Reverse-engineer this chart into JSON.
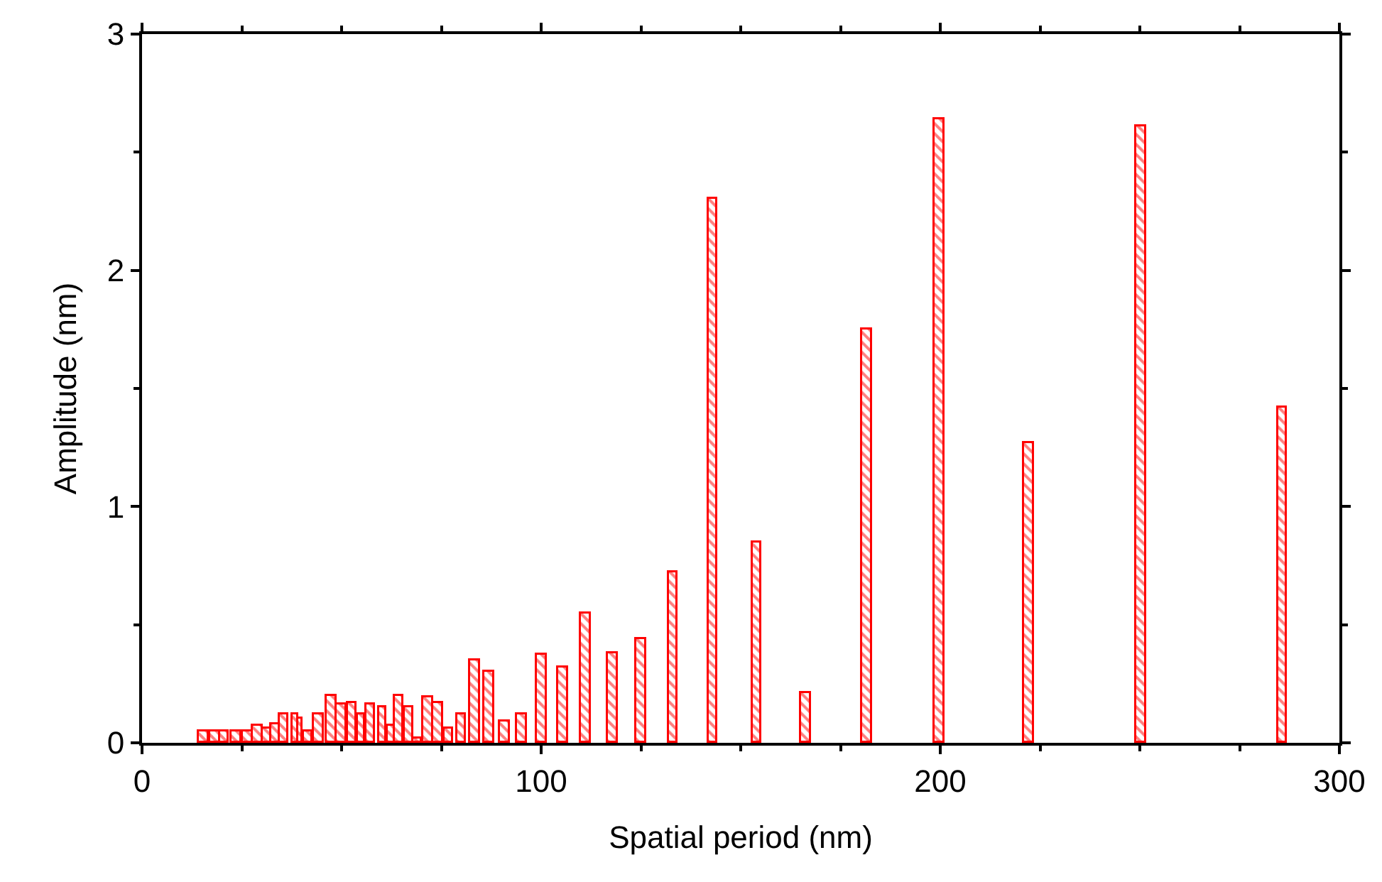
{
  "chart_data": {
    "type": "bar",
    "xlabel": "Spatial period (nm)",
    "ylabel": "Amplitude (nm)",
    "x": [
      15.4,
      18.3,
      20.7,
      23.6,
      26.4,
      29.0,
      31.3,
      33.4,
      35.7,
      38.4,
      39.6,
      41.6,
      44.4,
      47.6,
      50.1,
      52.6,
      55.0,
      57.2,
      60.4,
      62.4,
      64.5,
      66.8,
      69.0,
      71.6,
      74.2,
      76.9,
      80.1,
      83.4,
      86.9,
      90.9,
      95.3,
      100.1,
      105.4,
      111.1,
      117.9,
      125.0,
      133.1,
      143.1,
      154.1,
      166.5,
      181.8,
      199.9,
      222.2,
      250.3,
      285.8
    ],
    "values": [
      0.05,
      0.05,
      0.05,
      0.05,
      0.05,
      0.07,
      0.06,
      0.08,
      0.12,
      0.12,
      0.1,
      0.05,
      0.12,
      0.2,
      0.16,
      0.17,
      0.12,
      0.16,
      0.15,
      0.07,
      0.2,
      0.15,
      0.02,
      0.19,
      0.17,
      0.06,
      0.12,
      0.35,
      0.3,
      0.09,
      0.12,
      0.37,
      0.32,
      0.55,
      0.38,
      0.44,
      0.72,
      2.3,
      0.85,
      0.21,
      1.75,
      2.64,
      1.27,
      2.61,
      1.42
    ],
    "color": "#ff0000",
    "xlim": [
      0,
      300
    ],
    "xticks": [
      0,
      100,
      200,
      300
    ],
    "ylim": [
      0,
      3
    ],
    "yticks": [
      0,
      1,
      2,
      3
    ]
  }
}
